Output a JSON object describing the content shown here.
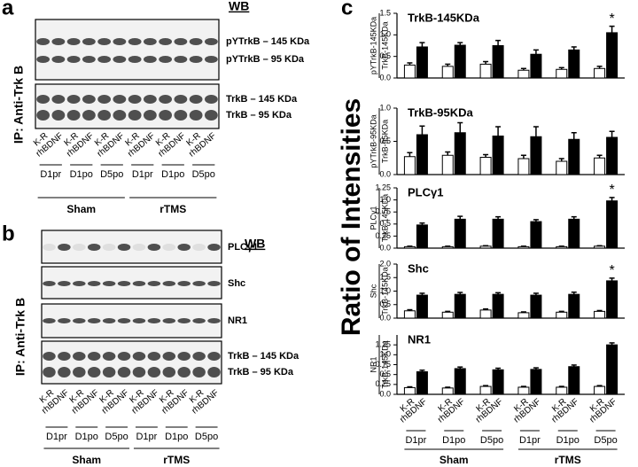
{
  "panel_a": {
    "label": "a",
    "method": "WB",
    "ip": "IP: Anti-Trk B",
    "bands": [
      "pYTrkB – 145 KDa",
      "pYTrkB – 95 KDa",
      "TrkB – 145 KDa",
      "TrkB – 95 KDa"
    ],
    "lanes": [
      "K-R",
      "rhBDNF"
    ],
    "groups": [
      "D1pr",
      "D1po",
      "D5po",
      "D1pr",
      "D1po",
      "D5po"
    ],
    "conditions": [
      "Sham",
      "rTMS"
    ]
  },
  "panel_b": {
    "label": "b",
    "method": "WB",
    "ip": "IP: Anti-Trk B",
    "bands": [
      "PLCγ1",
      "Shc",
      "NR1",
      "TrkB – 145 KDa",
      "TrkB –  95 KDa"
    ],
    "lanes": [
      "K-R",
      "rhBDNF"
    ],
    "groups": [
      "D1pr",
      "D1po",
      "D5po",
      "D1pr",
      "D1po",
      "D5po"
    ],
    "conditions": [
      "Sham",
      "rTMS"
    ]
  },
  "panel_c": {
    "label": "c",
    "ylabel": "Ratio of Intensities",
    "categories": [
      "D1pr",
      "D1po",
      "D5po",
      "D1pr",
      "D1po",
      "D5po"
    ],
    "conditions": [
      "Sham",
      "rTMS"
    ]
  },
  "chart_data": [
    {
      "type": "bar",
      "title": "TrkB-145KDa",
      "ylabel": [
        "pYTrkB-145KDa",
        "TrkB-145KDa"
      ],
      "ylim": [
        0,
        1.5
      ],
      "yticks": [
        {
          "value": 0,
          "label": "0.0"
        },
        0.5,
        {
          "value": 1,
          "label": "1.0"
        },
        1.5
      ],
      "series": [
        {
          "name": "K-R",
          "color": "#ffffff",
          "values": [
            0.3,
            0.27,
            0.32,
            0.18,
            0.2,
            0.22
          ],
          "errors": [
            0.05,
            0.05,
            0.06,
            0.04,
            0.04,
            0.05
          ]
        },
        {
          "name": "rhBDNF",
          "color": "#000000",
          "values": [
            0.72,
            0.76,
            0.75,
            0.55,
            0.65,
            1.05
          ],
          "errors": [
            0.1,
            0.06,
            0.12,
            0.1,
            0.07,
            0.15
          ]
        }
      ],
      "annotations": [
        {
          "text": "*",
          "series": 1,
          "index": 5
        }
      ]
    },
    {
      "type": "bar",
      "title": "TrkB-95KDa",
      "ylabel": [
        "pYTrkB-95KDa",
        "TrkB-95KDa"
      ],
      "ylim": [
        0,
        1.0
      ],
      "yticks": [
        {
          "value": 0,
          "label": "0.0"
        },
        0.5,
        {
          "value": 1,
          "label": "1.0"
        }
      ],
      "series": [
        {
          "name": "K-R",
          "color": "#ffffff",
          "values": [
            0.27,
            0.29,
            0.26,
            0.24,
            0.2,
            0.25
          ],
          "errors": [
            0.06,
            0.05,
            0.04,
            0.05,
            0.04,
            0.04
          ]
        },
        {
          "name": "rhBDNF",
          "color": "#000000",
          "values": [
            0.6,
            0.63,
            0.58,
            0.57,
            0.53,
            0.56
          ],
          "errors": [
            0.13,
            0.15,
            0.14,
            0.15,
            0.1,
            0.09
          ]
        }
      ]
    },
    {
      "type": "bar",
      "title": "PLCγ1",
      "ylabel": [
        "PLCγ1",
        "TrkB-145KDa"
      ],
      "ylim": [
        0,
        1.25
      ],
      "yticks": [
        {
          "value": 0,
          "label": "0.0"
        },
        0.25,
        0.5,
        0.75,
        {
          "value": 1,
          "label": "1.0"
        },
        1.25
      ],
      "series": [
        {
          "name": "K-R",
          "color": "#ffffff",
          "values": [
            0.03,
            0.03,
            0.04,
            0.03,
            0.03,
            0.04
          ],
          "errors": [
            0.01,
            0.01,
            0.01,
            0.01,
            0.01,
            0.01
          ]
        },
        {
          "name": "rhBDNF",
          "color": "#000000",
          "values": [
            0.48,
            0.6,
            0.6,
            0.55,
            0.6,
            0.98
          ],
          "errors": [
            0.04,
            0.06,
            0.05,
            0.04,
            0.05,
            0.07
          ]
        }
      ],
      "annotations": [
        {
          "text": "*",
          "series": 1,
          "index": 5
        }
      ]
    },
    {
      "type": "bar",
      "title": "Shc",
      "ylabel": [
        "Shc",
        "TrkB-145KDa"
      ],
      "ylim": [
        0,
        2.0
      ],
      "yticks": [
        {
          "value": 0,
          "label": "0.0"
        },
        0.5,
        {
          "value": 1,
          "label": "1.0"
        },
        1.5,
        {
          "value": 2,
          "label": "2.0"
        }
      ],
      "series": [
        {
          "name": "K-R",
          "color": "#ffffff",
          "values": [
            0.27,
            0.22,
            0.3,
            0.2,
            0.22,
            0.25
          ],
          "errors": [
            0.04,
            0.03,
            0.04,
            0.03,
            0.03,
            0.03
          ]
        },
        {
          "name": "rhBDNF",
          "color": "#000000",
          "values": [
            0.85,
            0.88,
            0.88,
            0.85,
            0.88,
            1.38
          ],
          "errors": [
            0.07,
            0.07,
            0.06,
            0.07,
            0.08,
            0.1
          ]
        }
      ],
      "annotations": [
        {
          "text": "*",
          "series": 1,
          "index": 5
        }
      ]
    },
    {
      "type": "bar",
      "title": "NR1",
      "ylabel": [
        "NR1",
        "TrkB-145KDa"
      ],
      "ylim": [
        0,
        1.5
      ],
      "yticks": [
        {
          "value": 0,
          "label": "0.0"
        },
        0.25,
        0.5,
        0.75,
        {
          "value": 1,
          "label": "1.0"
        },
        1.25
      ],
      "series": [
        {
          "name": "K-R",
          "color": "#ffffff",
          "values": [
            0.17,
            0.16,
            0.2,
            0.18,
            0.18,
            0.2
          ],
          "errors": [
            0.02,
            0.02,
            0.02,
            0.02,
            0.02,
            0.02
          ]
        },
        {
          "name": "rhBDNF",
          "color": "#000000",
          "values": [
            0.57,
            0.65,
            0.62,
            0.63,
            0.7,
            1.25
          ],
          "errors": [
            0.04,
            0.04,
            0.04,
            0.04,
            0.04,
            0.05
          ]
        }
      ]
    }
  ]
}
